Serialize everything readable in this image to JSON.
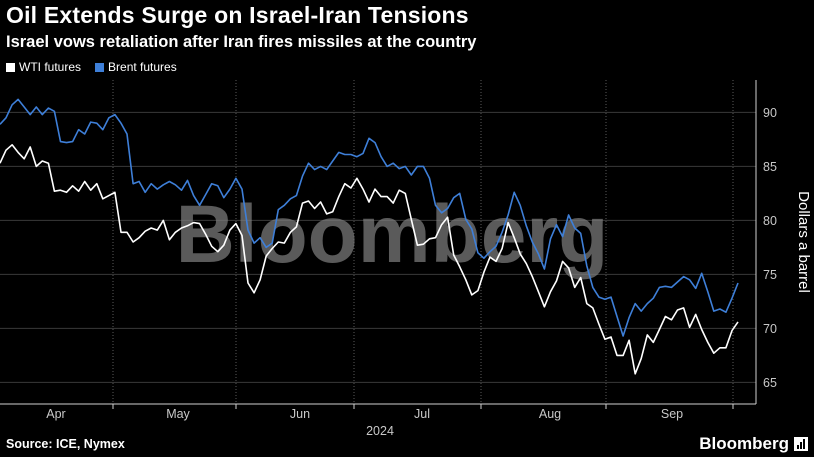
{
  "title": "Oil Extends Surge on Israel-Iran Tensions",
  "subtitle": "Israel vows retaliation after Iran fires missiles at the country",
  "legend": [
    {
      "label": "WTI futures",
      "color": "#ffffff"
    },
    {
      "label": "Brent futures",
      "color": "#3e7fd8"
    }
  ],
  "source": "Source: ICE, Nymex",
  "brand": "Bloomberg",
  "watermark": "Bloomberg",
  "chart_data": {
    "type": "line",
    "ylabel": "Dollars a barrel",
    "xlabel": "2024",
    "ylim": [
      63,
      93
    ],
    "yticks": [
      65,
      70,
      75,
      80,
      85,
      90
    ],
    "grid": true,
    "legend_position": "top-left",
    "xticks": [
      "Apr",
      "May",
      "Jun",
      "Jul",
      "Aug",
      "Sep"
    ],
    "series": [
      {
        "name": "WTI futures",
        "color": "#ffffff",
        "values": [
          85.3,
          86.5,
          87.0,
          86.3,
          85.7,
          86.8,
          85.0,
          85.5,
          85.3,
          82.7,
          82.8,
          82.6,
          83.2,
          82.7,
          83.6,
          82.8,
          83.4,
          82.0,
          82.3,
          82.6,
          78.9,
          78.9,
          78.0,
          78.4,
          79.0,
          79.3,
          79.1,
          80.0,
          78.2,
          78.9,
          79.3,
          79.5,
          79.8,
          79.7,
          78.7,
          77.6,
          77.1,
          77.7,
          79.1,
          79.7,
          78.6,
          74.2,
          73.3,
          74.5,
          76.7,
          77.4,
          78.0,
          77.9,
          78.9,
          79.4,
          81.6,
          81.8,
          81.1,
          81.7,
          80.6,
          80.8,
          82.2,
          83.4,
          83.0,
          83.9,
          82.9,
          81.7,
          82.9,
          82.2,
          82.2,
          81.6,
          82.8,
          82.5,
          80.1,
          77.7,
          77.8,
          78.3,
          78.4,
          79.6,
          80.3,
          76.8,
          75.7,
          74.5,
          73.1,
          73.5,
          75.2,
          76.6,
          76.2,
          77.4,
          79.8,
          78.4,
          76.9,
          76.0,
          74.8,
          73.4,
          72.0,
          73.4,
          74.4,
          76.2,
          75.6,
          73.8,
          74.7,
          72.3,
          71.9,
          70.4,
          69.0,
          69.2,
          67.5,
          67.5,
          68.9,
          65.8,
          67.2,
          69.4,
          68.7,
          69.9,
          71.1,
          70.8,
          71.7,
          71.9,
          70.1,
          71.3,
          69.9,
          68.7,
          67.7,
          68.2,
          68.2,
          69.8,
          70.6
        ]
      },
      {
        "name": "Brent futures",
        "color": "#3e7fd8",
        "values": [
          88.9,
          89.5,
          90.7,
          91.2,
          90.5,
          89.8,
          90.5,
          89.8,
          90.4,
          90.1,
          87.3,
          87.2,
          87.3,
          88.4,
          88.0,
          89.1,
          89.0,
          88.4,
          89.5,
          89.8,
          89.0,
          88.0,
          83.4,
          83.6,
          82.6,
          83.4,
          82.9,
          83.3,
          83.6,
          83.3,
          82.8,
          83.7,
          82.3,
          81.4,
          82.4,
          83.4,
          83.2,
          82.1,
          82.9,
          83.9,
          82.9,
          79.1,
          77.9,
          78.4,
          77.5,
          77.9,
          81.0,
          81.4,
          82.0,
          82.3,
          84.1,
          85.3,
          84.7,
          85.0,
          84.7,
          85.5,
          86.3,
          86.1,
          86.1,
          85.9,
          86.2,
          87.6,
          87.2,
          85.9,
          85.0,
          85.3,
          84.8,
          85.0,
          84.2,
          85.0,
          85.0,
          83.9,
          81.4,
          80.7,
          81.1,
          82.1,
          82.5,
          80.1,
          79.2,
          77.0,
          76.5,
          77.1,
          77.6,
          78.9,
          80.5,
          82.6,
          81.4,
          79.5,
          78.0,
          76.9,
          75.5,
          78.3,
          79.6,
          78.5,
          80.5,
          79.3,
          78.8,
          75.8,
          73.8,
          72.9,
          72.7,
          72.9,
          71.1,
          69.3,
          71.0,
          72.3,
          71.6,
          72.3,
          72.8,
          73.8,
          73.9,
          73.8,
          74.3,
          74.8,
          74.5,
          73.7,
          75.1,
          73.4,
          71.6,
          71.8,
          71.5,
          72.8,
          74.2
        ]
      }
    ]
  }
}
